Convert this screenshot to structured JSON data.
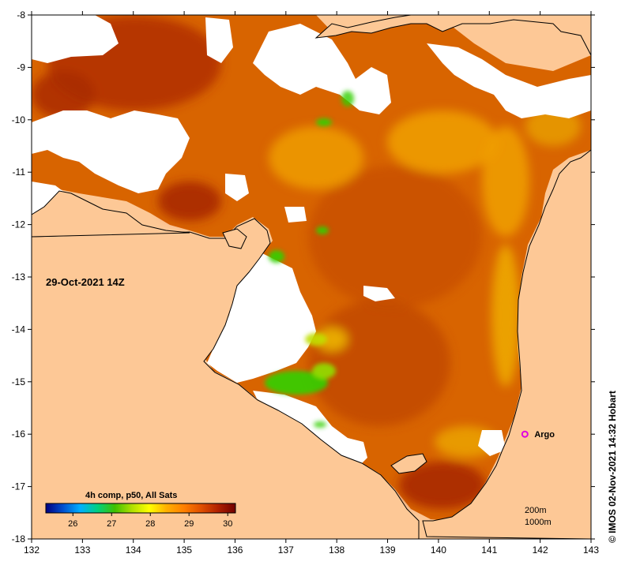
{
  "map": {
    "date_label": "29-Oct-2021 14Z",
    "credit": "©  IMOS 02-Nov-2021 14:32 Hobart",
    "lon_ticks": [
      "132",
      "133",
      "134",
      "135",
      "136",
      "137",
      "138",
      "139",
      "140",
      "141",
      "142",
      "143"
    ],
    "lat_ticks": [
      "-8",
      "-9",
      "-10",
      "-11",
      "-12",
      "-13",
      "-14",
      "-15",
      "-16",
      "-17",
      "-18"
    ],
    "lon_range": [
      132,
      143
    ],
    "lat_range": [
      -18,
      -8
    ],
    "colorbar": {
      "title": "4h comp, p50, All Sats",
      "tick_labels": [
        "26",
        "27",
        "28",
        "29",
        "30"
      ],
      "range": [
        25.3,
        30.2
      ],
      "colors": [
        "#000080",
        "#0050d0",
        "#00b0ff",
        "#00d080",
        "#40c000",
        "#b0e000",
        "#ffff00",
        "#ffb000",
        "#ff8000",
        "#e05000",
        "#b02000",
        "#700000"
      ]
    },
    "scale_labels": [
      "200m",
      "1000m"
    ],
    "argo": {
      "label": "Argo",
      "lon": 141.7,
      "lat": -16.0,
      "color": "#e000e0"
    },
    "colors": {
      "land": "#fdc896",
      "cloud": "#ffffff",
      "sst_warm": "#d86400",
      "sst_hot": "#a82800",
      "sst_mild": "#f0a000",
      "sst_cool": "#30d000"
    }
  }
}
